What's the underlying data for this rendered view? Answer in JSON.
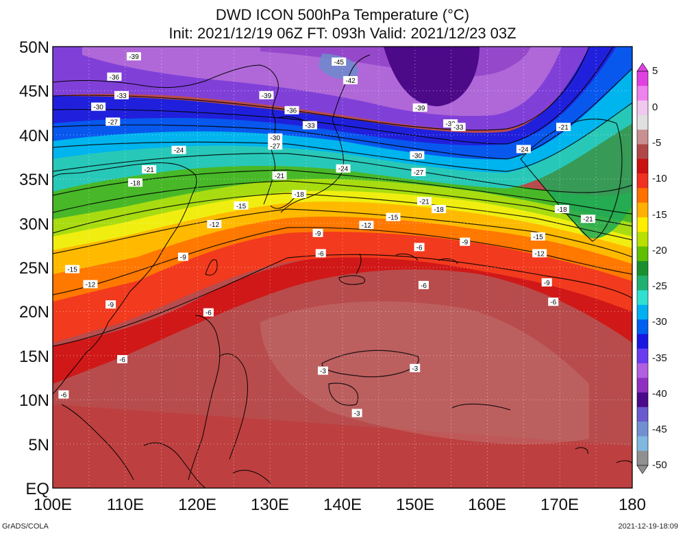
{
  "title_line1": "DWD ICON 500hPa Temperature (°C)",
  "title_line2": "Init: 2021/12/19 06Z  FT: 093h  Valid: 2021/12/23 03Z",
  "footer_left": "GrADS/COLA",
  "footer_right": "2021-12-19-18:09",
  "map": {
    "lon_ticks": [
      "100E",
      "110E",
      "120E",
      "130E",
      "140E",
      "150E",
      "160E",
      "170E",
      "180"
    ],
    "lat_ticks": [
      "50N",
      "45N",
      "40N",
      "35N",
      "30N",
      "25N",
      "20N",
      "15N",
      "10N",
      "5N",
      "EQ"
    ],
    "lon_range": [
      100,
      180
    ],
    "lat_range": [
      0,
      50
    ],
    "gridlines": "dotted"
  },
  "colorbar": {
    "labels": [
      "5",
      "0",
      "-5",
      "-10",
      "-15",
      "-20",
      "-25",
      "-30",
      "-35",
      "-40",
      "-45",
      "-50"
    ],
    "colors": [
      "#e040e0",
      "#ee82ee",
      "#f0c8f0",
      "#e0e0e0",
      "#c89090",
      "#b04848",
      "#cc1010",
      "#f03020",
      "#ff7000",
      "#ffb000",
      "#ffee00",
      "#b8e000",
      "#60c000",
      "#189030",
      "#20b070",
      "#30e0d0",
      "#00b0f0",
      "#0060f0",
      "#1818e0",
      "#6a3cf0",
      "#b060e0",
      "#9030c0",
      "#4b0a8a",
      "#6a5acd",
      "#7090d0",
      "#80b8e0",
      "#909090"
    ]
  },
  "contour_labels": [
    {
      "text": "-39",
      "lon": 111.2,
      "lat": 48.9
    },
    {
      "text": "-36",
      "lon": 108.5,
      "lat": 46.6
    },
    {
      "text": "-33",
      "lon": 109.5,
      "lat": 44.5
    },
    {
      "text": "-30",
      "lon": 106.3,
      "lat": 43.2
    },
    {
      "text": "-27",
      "lon": 108.3,
      "lat": 41.5
    },
    {
      "text": "-24",
      "lon": 117.4,
      "lat": 38.3
    },
    {
      "text": "-21",
      "lon": 113.3,
      "lat": 36.1
    },
    {
      "text": "-18",
      "lon": 111.4,
      "lat": 34.6
    },
    {
      "text": "-15",
      "lon": 102.7,
      "lat": 24.8
    },
    {
      "text": "-12",
      "lon": 105.2,
      "lat": 23.1
    },
    {
      "text": "-9",
      "lon": 108.0,
      "lat": 20.8
    },
    {
      "text": "-6",
      "lon": 101.5,
      "lat": 10.6
    },
    {
      "text": "-6",
      "lon": 109.6,
      "lat": 14.6
    },
    {
      "text": "-9",
      "lon": 118.0,
      "lat": 26.2
    },
    {
      "text": "-12",
      "lon": 122.3,
      "lat": 29.9
    },
    {
      "text": "-15",
      "lon": 126.0,
      "lat": 32.0
    },
    {
      "text": "-18",
      "lon": 134.0,
      "lat": 33.3
    },
    {
      "text": "-21",
      "lon": 131.3,
      "lat": 35.4
    },
    {
      "text": "-24",
      "lon": 140.1,
      "lat": 36.2
    },
    {
      "text": "-27",
      "lon": 130.7,
      "lat": 38.8
    },
    {
      "text": "-30",
      "lon": 130.7,
      "lat": 39.7
    },
    {
      "text": "-33",
      "lon": 135.5,
      "lat": 41.1
    },
    {
      "text": "-36",
      "lon": 133.0,
      "lat": 42.8
    },
    {
      "text": "-39",
      "lon": 129.5,
      "lat": 44.5
    },
    {
      "text": "-45",
      "lon": 139.5,
      "lat": 48.3
    },
    {
      "text": "-42",
      "lon": 141.1,
      "lat": 46.2
    },
    {
      "text": "-39",
      "lon": 150.7,
      "lat": 43.1
    },
    {
      "text": "-30",
      "lon": 154.9,
      "lat": 41.3
    },
    {
      "text": "-33",
      "lon": 156.0,
      "lat": 40.9
    },
    {
      "text": "-30",
      "lon": 150.3,
      "lat": 37.7
    },
    {
      "text": "-27",
      "lon": 150.5,
      "lat": 35.8
    },
    {
      "text": "-24",
      "lon": 165.0,
      "lat": 38.4
    },
    {
      "text": "-21",
      "lon": 170.5,
      "lat": 40.9
    },
    {
      "text": "-21",
      "lon": 151.3,
      "lat": 32.5
    },
    {
      "text": "-18",
      "lon": 153.3,
      "lat": 31.6
    },
    {
      "text": "-15",
      "lon": 147.0,
      "lat": 30.7
    },
    {
      "text": "-12",
      "lon": 143.3,
      "lat": 29.8
    },
    {
      "text": "-9",
      "lon": 136.6,
      "lat": 28.9
    },
    {
      "text": "-6",
      "lon": 137.0,
      "lat": 26.6
    },
    {
      "text": "-6",
      "lon": 150.6,
      "lat": 27.3
    },
    {
      "text": "-9",
      "lon": 156.9,
      "lat": 27.9
    },
    {
      "text": "-6",
      "lon": 151.2,
      "lat": 23.0
    },
    {
      "text": "-18",
      "lon": 170.3,
      "lat": 31.6
    },
    {
      "text": "-21",
      "lon": 173.9,
      "lat": 30.5
    },
    {
      "text": "-15",
      "lon": 167.0,
      "lat": 28.5
    },
    {
      "text": "-12",
      "lon": 167.2,
      "lat": 26.6
    },
    {
      "text": "-9",
      "lon": 168.2,
      "lat": 23.3
    },
    {
      "text": "-6",
      "lon": 169.1,
      "lat": 21.1
    },
    {
      "text": "-6",
      "lon": 121.5,
      "lat": 19.9
    },
    {
      "text": "-3",
      "lon": 137.3,
      "lat": 13.3
    },
    {
      "text": "-3",
      "lon": 150.0,
      "lat": 13.6
    },
    {
      "text": "-3",
      "lon": 142.0,
      "lat": 8.5
    }
  ]
}
